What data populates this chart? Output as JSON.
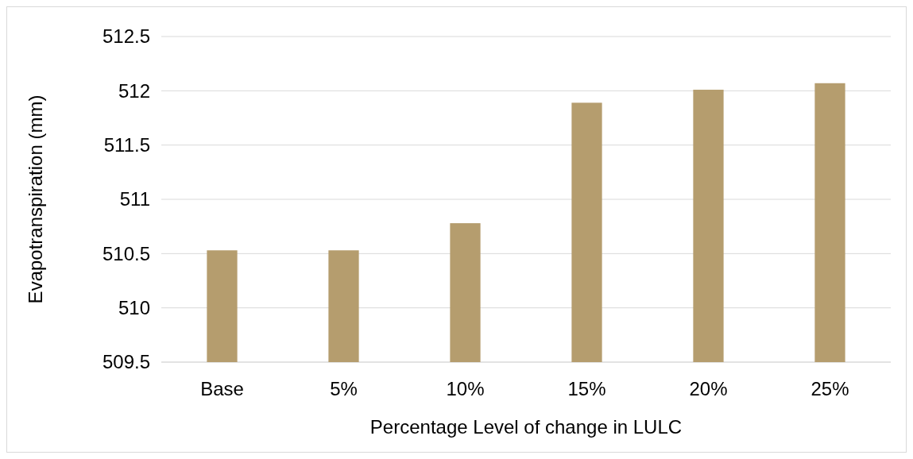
{
  "chart_data": {
    "type": "bar",
    "xlabel": "Percentage Level of change in LULC",
    "ylabel": "Evapotranspiration (mm)",
    "categories": [
      "Base",
      "5%",
      "10%",
      "15%",
      "20%",
      "25%"
    ],
    "values": [
      510.53,
      510.53,
      510.78,
      511.89,
      512.01,
      512.07
    ],
    "color": "#b59d6e",
    "ylim": [
      509.5,
      512.5
    ],
    "yticks": [
      509.5,
      510,
      510.5,
      511,
      511.5,
      512,
      512.5
    ],
    "grid": "y"
  }
}
